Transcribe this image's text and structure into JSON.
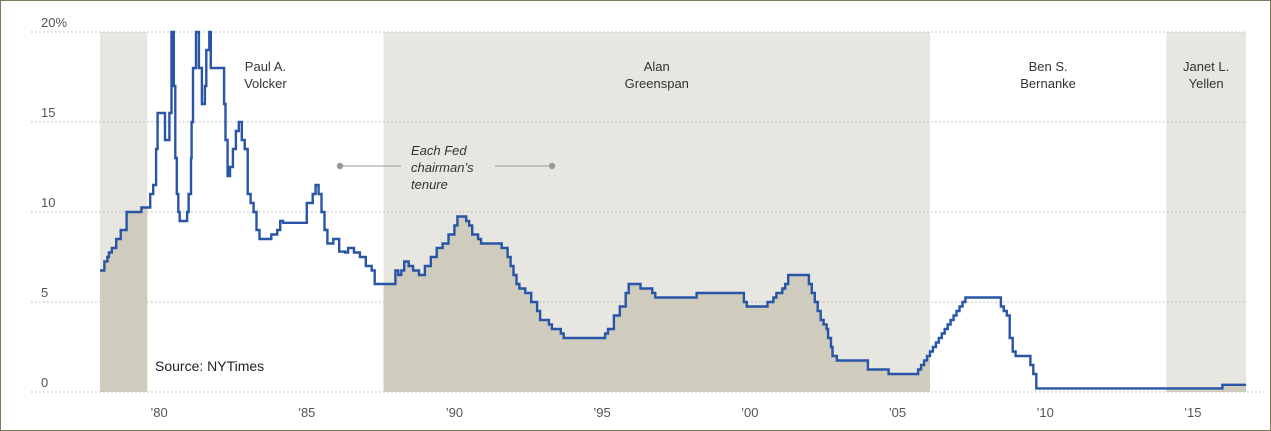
{
  "chart_data": {
    "type": "area",
    "title": "",
    "xlabel": "",
    "ylabel": "",
    "source": "Source: NYTimes",
    "xlim": [
      1978.0,
      2016.8
    ],
    "ylim": [
      0,
      20
    ],
    "y_ticks": [
      {
        "value": 20,
        "label": "20%"
      },
      {
        "value": 15,
        "label": "15"
      },
      {
        "value": 10,
        "label": "10"
      },
      {
        "value": 5,
        "label": "5"
      },
      {
        "value": 0,
        "label": "0"
      }
    ],
    "x_ticks": [
      {
        "value": 1980,
        "label": "’80"
      },
      {
        "value": 1985,
        "label": "’85"
      },
      {
        "value": 1990,
        "label": "’90"
      },
      {
        "value": 1995,
        "label": "’95"
      },
      {
        "value": 2000,
        "label": "’00"
      },
      {
        "value": 2005,
        "label": "’05"
      },
      {
        "value": 2010,
        "label": "’10"
      },
      {
        "value": 2015,
        "label": "’15"
      }
    ],
    "grid": "horizontal-dotted",
    "colors": {
      "line": "#2855a5",
      "area": "#cfccbd",
      "tenure_shade": "#e8e6e0",
      "grid": "#b5b5b5",
      "dot": "#999999"
    },
    "tenures": [
      {
        "name": "",
        "start": 1978.0,
        "end": 1979.6,
        "shaded": true
      },
      {
        "name": "Paul A.\nVolcker",
        "start": 1979.6,
        "end": 1987.6,
        "shaded": false
      },
      {
        "name": "Alan\nGreenspan",
        "start": 1987.6,
        "end": 2006.1,
        "shaded": true
      },
      {
        "name": "Ben S.\nBernanke",
        "start": 2006.1,
        "end": 2014.1,
        "shaded": false
      },
      {
        "name": "Janet L.\nYellen",
        "start": 2014.1,
        "end": 2016.8,
        "shaded": true
      }
    ],
    "annotation": "Each Fed\nchairman’s\ntenure",
    "series": [
      {
        "points": [
          [
            1978.0,
            6.75
          ],
          [
            1978.1,
            6.75
          ],
          [
            1978.15,
            7.25
          ],
          [
            1978.25,
            7.5
          ],
          [
            1978.3,
            7.75
          ],
          [
            1978.4,
            8.0
          ],
          [
            1978.55,
            8.5
          ],
          [
            1978.7,
            9.0
          ],
          [
            1978.9,
            10.0
          ],
          [
            1979.3,
            10.0
          ],
          [
            1979.4,
            10.25
          ],
          [
            1979.6,
            10.25
          ],
          [
            1979.7,
            11.0
          ],
          [
            1979.8,
            11.5
          ],
          [
            1979.9,
            13.5
          ],
          [
            1979.95,
            15.5
          ],
          [
            1980.15,
            15.5
          ],
          [
            1980.2,
            14.0
          ],
          [
            1980.3,
            14.0
          ],
          [
            1980.35,
            15.5
          ],
          [
            1980.42,
            20.0
          ],
          [
            1980.5,
            17.0
          ],
          [
            1980.55,
            13.0
          ],
          [
            1980.6,
            11.0
          ],
          [
            1980.65,
            10.0
          ],
          [
            1980.7,
            9.5
          ],
          [
            1980.9,
            9.5
          ],
          [
            1980.95,
            10.0
          ],
          [
            1981.0,
            11.0
          ],
          [
            1981.08,
            13.0
          ],
          [
            1981.1,
            15.0
          ],
          [
            1981.15,
            18.0
          ],
          [
            1981.25,
            20.0
          ],
          [
            1981.35,
            18.0
          ],
          [
            1981.45,
            16.0
          ],
          [
            1981.55,
            17.0
          ],
          [
            1981.6,
            19.0
          ],
          [
            1981.7,
            20.0
          ],
          [
            1981.75,
            18.0
          ],
          [
            1982.15,
            18.0
          ],
          [
            1982.2,
            16.0
          ],
          [
            1982.25,
            14.0
          ],
          [
            1982.32,
            12.0
          ],
          [
            1982.4,
            12.5
          ],
          [
            1982.5,
            13.5
          ],
          [
            1982.6,
            14.5
          ],
          [
            1982.7,
            15.0
          ],
          [
            1982.8,
            14.0
          ],
          [
            1982.9,
            13.5
          ],
          [
            1983.0,
            11.0
          ],
          [
            1983.1,
            10.5
          ],
          [
            1983.2,
            10.0
          ],
          [
            1983.3,
            9.0
          ],
          [
            1983.4,
            8.5
          ],
          [
            1983.7,
            8.5
          ],
          [
            1983.8,
            8.75
          ],
          [
            1984.0,
            9.0
          ],
          [
            1984.1,
            9.5
          ],
          [
            1984.2,
            9.4
          ],
          [
            1984.9,
            9.4
          ],
          [
            1985.0,
            10.5
          ],
          [
            1985.2,
            11.0
          ],
          [
            1985.3,
            11.5
          ],
          [
            1985.4,
            11.0
          ],
          [
            1985.5,
            10.0
          ],
          [
            1985.6,
            9.0
          ],
          [
            1985.7,
            8.25
          ],
          [
            1985.8,
            8.25
          ],
          [
            1985.9,
            8.5
          ],
          [
            1986.1,
            7.8
          ],
          [
            1986.3,
            7.75
          ],
          [
            1986.4,
            8.0
          ],
          [
            1986.6,
            7.75
          ],
          [
            1986.8,
            7.5
          ],
          [
            1987.0,
            7.0
          ],
          [
            1987.2,
            6.75
          ],
          [
            1987.3,
            6.0
          ],
          [
            1987.6,
            6.0
          ],
          [
            1987.9,
            6.0
          ],
          [
            1988.0,
            6.75
          ],
          [
            1988.1,
            6.5
          ],
          [
            1988.2,
            6.75
          ],
          [
            1988.3,
            7.25
          ],
          [
            1988.45,
            7.0
          ],
          [
            1988.6,
            6.75
          ],
          [
            1988.8,
            6.5
          ],
          [
            1989.0,
            7.0
          ],
          [
            1989.2,
            7.5
          ],
          [
            1989.4,
            8.0
          ],
          [
            1989.6,
            8.25
          ],
          [
            1989.8,
            8.75
          ],
          [
            1990.0,
            9.25
          ],
          [
            1990.1,
            9.75
          ],
          [
            1990.3,
            9.75
          ],
          [
            1990.4,
            9.5
          ],
          [
            1990.5,
            9.25
          ],
          [
            1990.6,
            8.75
          ],
          [
            1990.8,
            8.5
          ],
          [
            1990.9,
            8.25
          ],
          [
            1991.4,
            8.25
          ],
          [
            1991.6,
            8.0
          ],
          [
            1991.8,
            7.5
          ],
          [
            1991.9,
            7.0
          ],
          [
            1992.0,
            6.5
          ],
          [
            1992.1,
            6.0
          ],
          [
            1992.2,
            5.75
          ],
          [
            1992.4,
            5.5
          ],
          [
            1992.6,
            5.0
          ],
          [
            1992.8,
            4.5
          ],
          [
            1992.9,
            4.0
          ],
          [
            1993.2,
            3.75
          ],
          [
            1993.3,
            3.5
          ],
          [
            1993.6,
            3.25
          ],
          [
            1993.7,
            3.0
          ],
          [
            1995.0,
            3.0
          ],
          [
            1995.1,
            3.25
          ],
          [
            1995.2,
            3.5
          ],
          [
            1995.4,
            4.25
          ],
          [
            1995.6,
            4.75
          ],
          [
            1995.8,
            5.5
          ],
          [
            1995.9,
            6.0
          ],
          [
            1996.3,
            5.75
          ],
          [
            1996.7,
            5.5
          ],
          [
            1996.8,
            5.25
          ],
          [
            1998.1,
            5.25
          ],
          [
            1998.2,
            5.5
          ],
          [
            1999.7,
            5.5
          ],
          [
            1999.8,
            5.0
          ],
          [
            1999.9,
            4.75
          ],
          [
            2000.5,
            4.75
          ],
          [
            2000.6,
            5.0
          ],
          [
            2000.8,
            5.25
          ],
          [
            2000.9,
            5.5
          ],
          [
            2001.1,
            5.75
          ],
          [
            2001.2,
            6.0
          ],
          [
            2001.3,
            6.5
          ],
          [
            2001.95,
            6.5
          ],
          [
            2002.0,
            6.0
          ],
          [
            2002.1,
            5.5
          ],
          [
            2002.2,
            5.0
          ],
          [
            2002.3,
            4.5
          ],
          [
            2002.4,
            4.0
          ],
          [
            2002.5,
            3.75
          ],
          [
            2002.6,
            3.5
          ],
          [
            2002.65,
            3.0
          ],
          [
            2002.75,
            2.5
          ],
          [
            2002.8,
            2.0
          ],
          [
            2002.95,
            1.75
          ],
          [
            2003.9,
            1.75
          ],
          [
            2004.0,
            1.25
          ],
          [
            2004.6,
            1.25
          ],
          [
            2004.7,
            1.0
          ],
          [
            2005.6,
            1.0
          ],
          [
            2005.7,
            1.25
          ],
          [
            2005.8,
            1.5
          ],
          [
            2005.9,
            1.75
          ],
          [
            2006.0,
            2.0
          ],
          [
            2006.1,
            2.25
          ],
          [
            2006.2,
            2.5
          ],
          [
            2006.3,
            2.75
          ],
          [
            2006.4,
            3.0
          ],
          [
            2006.5,
            3.25
          ],
          [
            2006.6,
            3.5
          ],
          [
            2006.7,
            3.75
          ],
          [
            2006.8,
            4.0
          ],
          [
            2006.9,
            4.25
          ],
          [
            2007.0,
            4.5
          ],
          [
            2007.1,
            4.75
          ],
          [
            2007.2,
            5.0
          ],
          [
            2007.3,
            5.25
          ],
          [
            2008.4,
            5.25
          ],
          [
            2008.5,
            4.75
          ],
          [
            2008.6,
            4.5
          ],
          [
            2008.7,
            4.25
          ],
          [
            2008.8,
            3.0
          ],
          [
            2008.9,
            2.25
          ],
          [
            2009.0,
            2.0
          ],
          [
            2009.4,
            2.0
          ],
          [
            2009.5,
            1.5
          ],
          [
            2009.6,
            1.0
          ],
          [
            2009.7,
            0.2
          ],
          [
            2015.9,
            0.2
          ],
          [
            2016.0,
            0.4
          ],
          [
            2016.8,
            0.4
          ]
        ]
      }
    ]
  }
}
